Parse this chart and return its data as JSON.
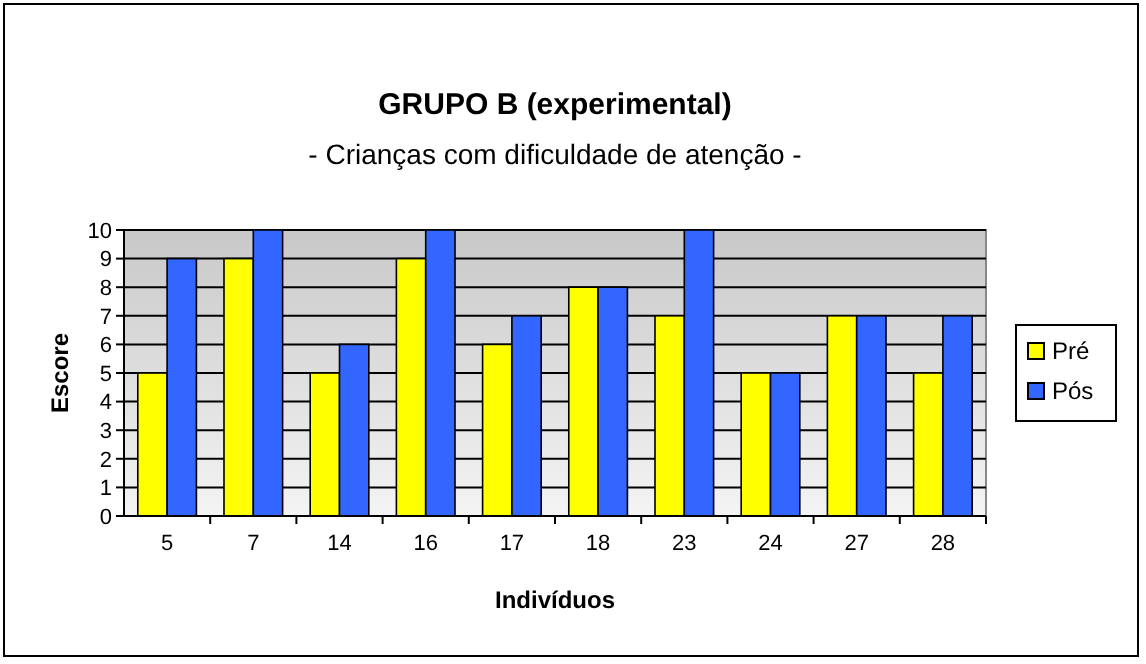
{
  "chart_data": {
    "type": "bar",
    "title": "GRUPO B (experimental)",
    "subtitle": "- Crianças com dificuldade de atenção -",
    "xlabel": "Indivíduos",
    "ylabel": "Escore",
    "categories": [
      "5",
      "7",
      "14",
      "16",
      "17",
      "18",
      "23",
      "24",
      "27",
      "28"
    ],
    "series": [
      {
        "name": "Pré",
        "color": "#ffff00",
        "values": [
          5,
          9,
          5,
          9,
          6,
          8,
          7,
          5,
          7,
          5
        ]
      },
      {
        "name": "Pós",
        "color": "#3366ff",
        "values": [
          9,
          10,
          6,
          10,
          7,
          8,
          10,
          5,
          7,
          7
        ]
      }
    ],
    "ylim": [
      0,
      10
    ],
    "yticks": [
      0,
      1,
      2,
      3,
      4,
      5,
      6,
      7,
      8,
      9,
      10
    ],
    "grid": "y",
    "legend": "right"
  }
}
